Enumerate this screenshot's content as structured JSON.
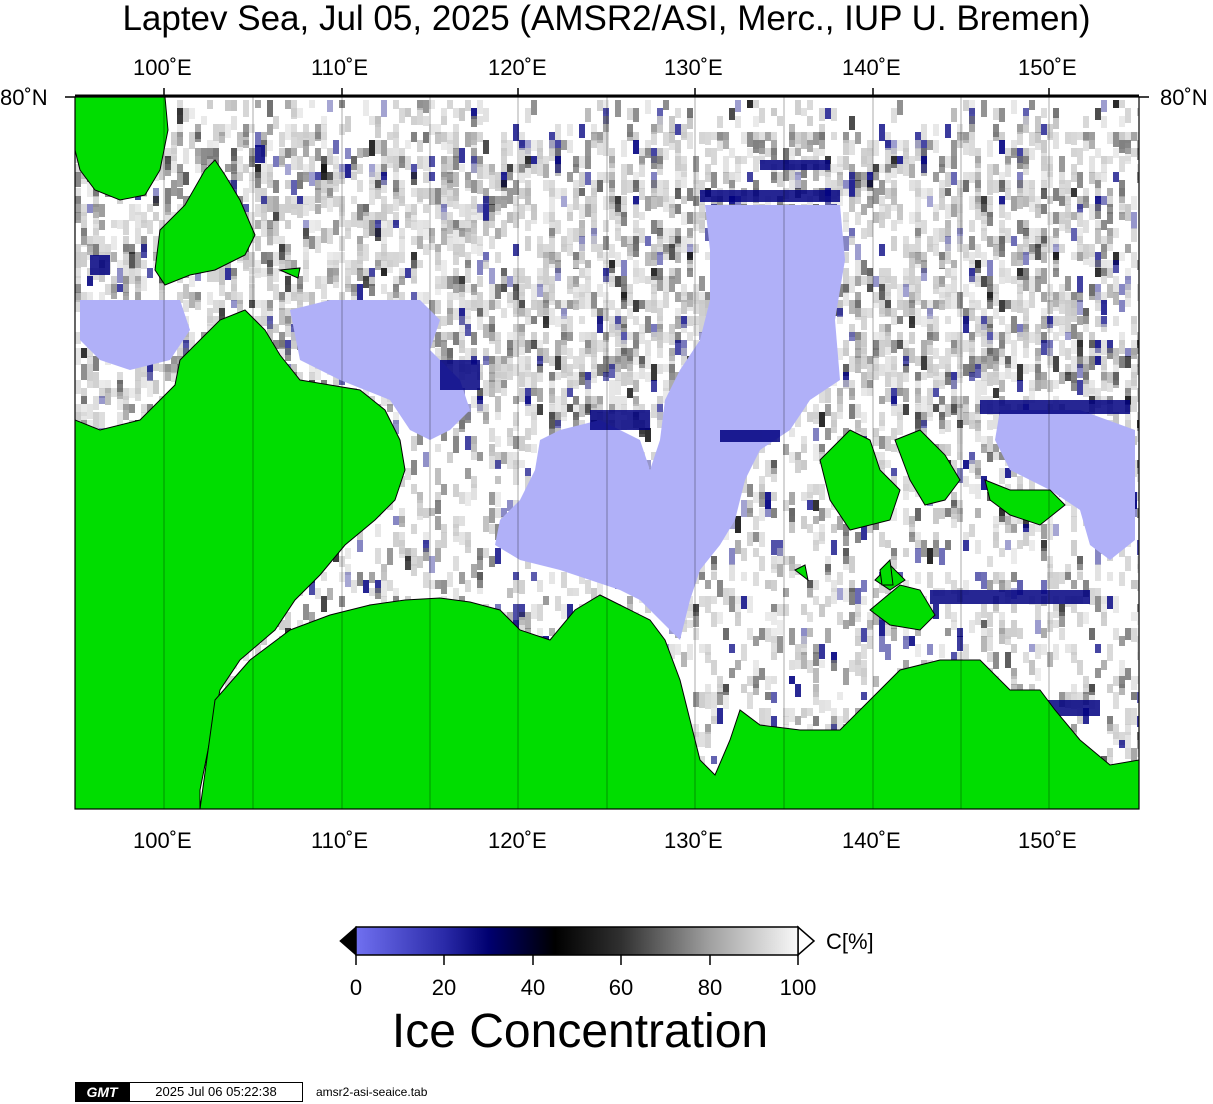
{
  "title": "Laptev Sea, Jul 05, 2025 (AMSR2/ASI, Merc., IUP U. Bremen)",
  "longitude_labels": [
    "100˚E",
    "110˚E",
    "120˚E",
    "130˚E",
    "140˚E",
    "150˚E"
  ],
  "latitude_labels": {
    "left": "80˚N",
    "right": "80˚N"
  },
  "colorbar": {
    "ticks": [
      "0",
      "20",
      "40",
      "60",
      "80",
      "100"
    ],
    "unit": "C[%]",
    "title": "Ice Concentration"
  },
  "footer": {
    "logo": "GMT",
    "timestamp": "2025 Jul 06 05:22:38",
    "filename": "amsr2-asi-seaice.tab"
  },
  "colors": {
    "land": "#00dd00",
    "open_water": "#b0b0f8",
    "low_ice": "#000080",
    "mid_ice": "#000000",
    "full_ice": "#ffffff"
  }
}
